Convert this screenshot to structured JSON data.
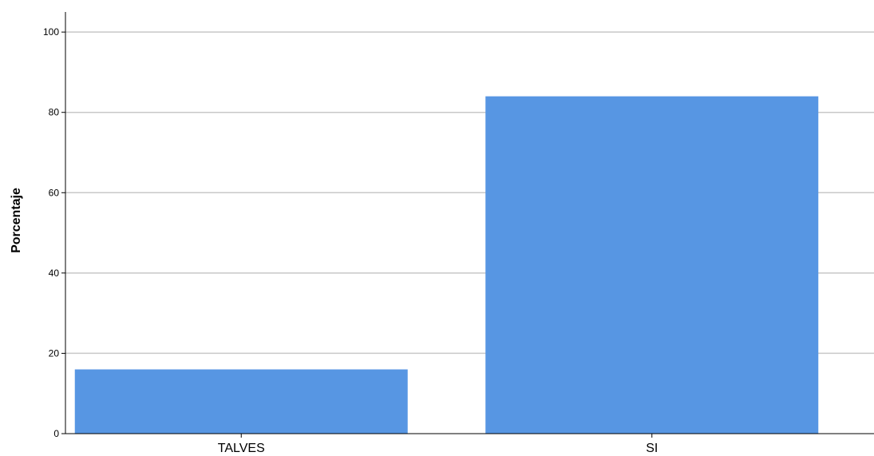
{
  "chart_data": {
    "type": "bar",
    "categories": [
      "TALVES",
      "SI"
    ],
    "values": [
      16,
      84
    ],
    "ylabel": "Porcentaje",
    "xlabel": "",
    "ylim": [
      0,
      105
    ],
    "yticks": [
      0,
      20,
      40,
      60,
      80,
      100
    ],
    "grid": true,
    "bar_color": "#5796E3",
    "grid_color": "#c8c8c8",
    "axis_color": "#000000"
  }
}
